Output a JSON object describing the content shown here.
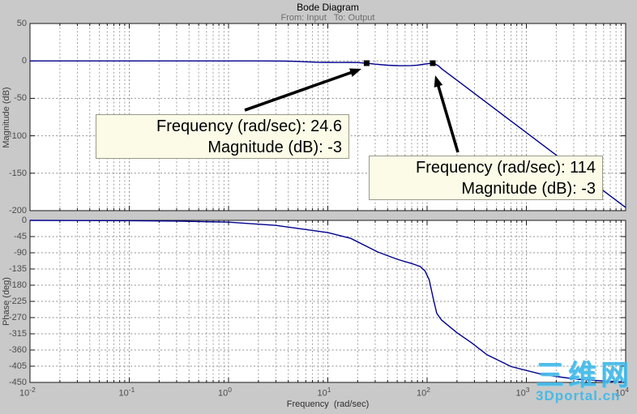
{
  "title": "Bode Diagram",
  "subtitle": "From: Input   To: Output",
  "xaxis": {
    "label": "Frequency  (rad/sec)",
    "tick_base": "10",
    "tick_exponents": [
      -2,
      -1,
      0,
      1,
      2,
      3,
      4
    ]
  },
  "magnitude_plot": {
    "ylabel": "Magnitude (dB)",
    "yticks": [
      50,
      0,
      -50,
      -100,
      -150,
      -200
    ]
  },
  "phase_plot": {
    "ylabel": "Phase (deg)",
    "yticks": [
      0,
      -45,
      -90,
      -135,
      -180,
      -225,
      -270,
      -315,
      -360,
      -405,
      -450
    ]
  },
  "datatips": [
    {
      "line1": "Frequency (rad/sec): 24.6",
      "line2": "Magnitude (dB): -3"
    },
    {
      "line1": "Frequency (rad/sec): 114",
      "line2": "Magnitude (dB): -3"
    }
  ],
  "watermark": {
    "cn": "三维网",
    "en": "3Dportal.cn"
  },
  "colors": {
    "figure_bg": "#c9c9c9",
    "plot_bg": "#ffffff",
    "frame": "#1a1a1a",
    "grid": "#8e8e8e",
    "curve": "#00008f",
    "marker": "#000000",
    "arrow": "#000000",
    "tip_bg": "#fbfbe8",
    "watermark": "#3fb8e8"
  },
  "chart_data": {
    "type": "line",
    "title": "Bode Diagram",
    "subtitle": "From: Input  To: Output",
    "xlabel": "Frequency (rad/sec)",
    "xscale": "log",
    "xlim": [
      0.01,
      10000
    ],
    "grid": true,
    "subplots": [
      {
        "name": "magnitude",
        "ylabel": "Magnitude (dB)",
        "ylim": [
          -200,
          50
        ],
        "yticks": [
          50,
          0,
          -50,
          -100,
          -150,
          -200
        ],
        "series": [
          {
            "name": "magnitude-response",
            "x": [
              0.01,
              0.1,
              1,
              2,
              3,
              4,
              5,
              6,
              8,
              10,
              13,
              16,
              20,
              24.6,
              30,
              40,
              50,
              60,
              70,
              80,
              90,
              100,
              108,
              114,
              120,
              130,
              140,
              160,
              200,
              270,
              400,
              600,
              1000,
              1800,
              3000,
              6000,
              10000
            ],
            "y": [
              0,
              0,
              0,
              0,
              -0.1,
              -0.3,
              -0.7,
              -1.2,
              -1.8,
              -2.0,
              -2.1,
              -1.9,
              -2.2,
              -3,
              -4.3,
              -5.7,
              -6.3,
              -6.4,
              -6.2,
              -5.6,
              -4.7,
              -3.8,
              -3.2,
              -3,
              -4,
              -6.5,
              -10.4,
              -16.2,
              -25.9,
              -38.9,
              -56,
              -73.6,
              -95.8,
              -121.3,
              -143.5,
              -173.6,
              -195.8
            ]
          }
        ],
        "markers": [
          {
            "freq": 24.6,
            "db": -3
          },
          {
            "freq": 114,
            "db": -3
          }
        ]
      },
      {
        "name": "phase",
        "ylabel": "Phase (deg)",
        "ylim": [
          -450,
          0
        ],
        "yticks": [
          0,
          -45,
          -90,
          -135,
          -180,
          -225,
          -270,
          -315,
          -360,
          -405,
          -450
        ],
        "series": [
          {
            "name": "phase-response",
            "x": [
              0.01,
              0.1,
              0.3,
              1,
              3,
              10,
              17,
              32,
              50,
              70,
              85,
              95,
              105,
              115,
              125,
              140,
              160,
              200,
              280,
              400,
              700,
              1500,
              3200,
              6000,
              10000
            ],
            "y": [
              0,
              -1,
              -2,
              -5,
              -14,
              -34,
              -50,
              -88,
              -108,
              -120,
              -128,
              -140,
              -165,
              -215,
              -258,
              -277,
              -290,
              -312,
              -340,
              -373,
              -406,
              -429,
              -441,
              -446,
              -449
            ]
          }
        ]
      }
    ]
  }
}
